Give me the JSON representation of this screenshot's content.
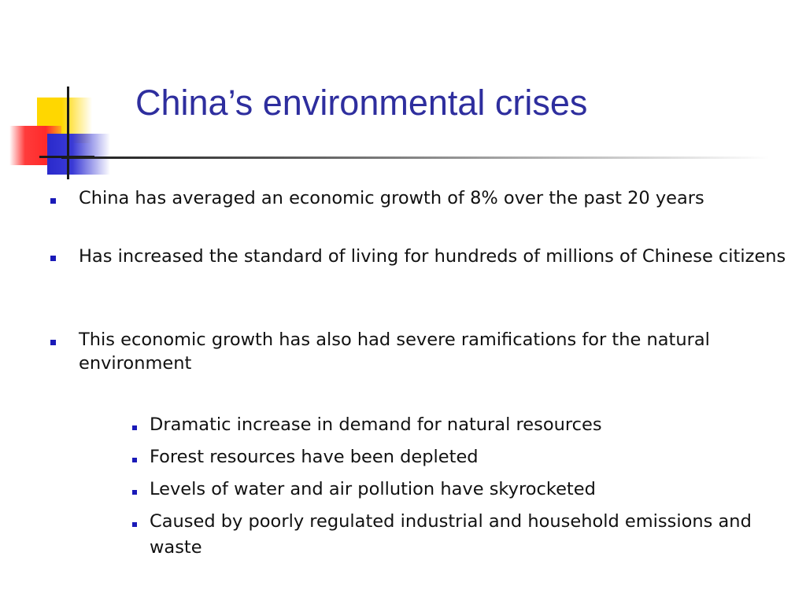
{
  "slide": {
    "title": "China’s environmental crises",
    "accent_color": "#2e2e9e",
    "bullet_color": "#1a1ab8",
    "bullets": [
      {
        "text": "China has averaged an economic growth of 8% over the past 20 years"
      },
      {
        "text": "Has increased the standard of living for hundreds of millions of Chinese citizens"
      },
      {
        "text": "This economic growth has also had severe ramifications for the natural environment"
      }
    ],
    "sub_bullets": [
      {
        "text": "Dramatic increase in demand for natural resources"
      },
      {
        "text": "Forest resources have been depleted"
      },
      {
        "text": "Levels of water and air pollution have skyrocketed"
      },
      {
        "text": "Caused by poorly regulated industrial and household emissions and waste"
      }
    ]
  }
}
